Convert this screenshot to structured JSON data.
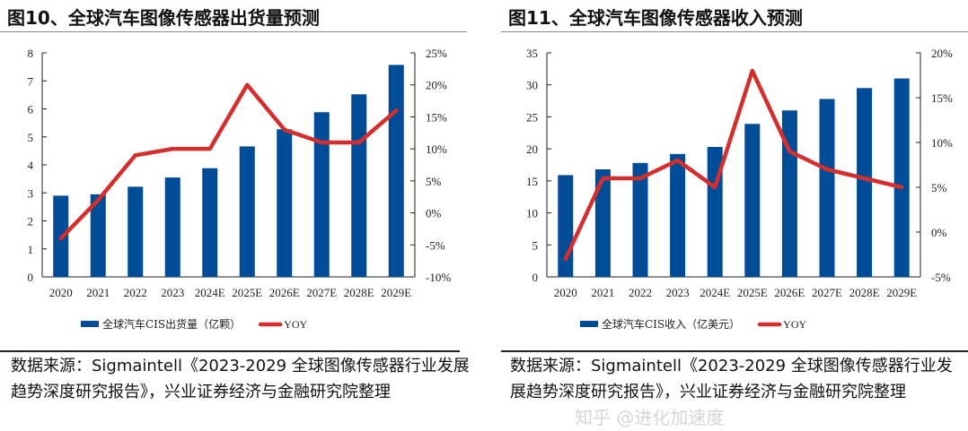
{
  "colors": {
    "bar": "#004C97",
    "line": "#D32F2F"
  },
  "watermark": "知乎 @进化加速度",
  "chart_data": [
    {
      "type": "bar+line",
      "title": "图10、全球汽车图像传感器出货量预测",
      "categories": [
        "2020",
        "2021",
        "2022",
        "2023",
        "2024E",
        "2025E",
        "2026E",
        "2027E",
        "2028E",
        "2029E"
      ],
      "series": [
        {
          "name": "全球汽车CIS出货量（亿颗）",
          "type": "bar",
          "axis": "left",
          "values": [
            2.9,
            2.95,
            3.22,
            3.55,
            3.88,
            4.66,
            5.27,
            5.88,
            6.52,
            7.57
          ]
        },
        {
          "name": "YOY",
          "type": "line",
          "axis": "right",
          "values": [
            -4,
            2,
            9,
            10,
            10,
            20,
            13,
            11,
            11,
            16
          ]
        }
      ],
      "ylim": [
        0,
        8
      ],
      "yticks": [
        "0",
        "1",
        "2",
        "3",
        "4",
        "5",
        "6",
        "7",
        "8"
      ],
      "y2lim": [
        -10,
        25
      ],
      "y2ticks": [
        "-10%",
        "-5%",
        "0%",
        "5%",
        "10%",
        "15%",
        "20%",
        "25%"
      ],
      "legend": "bottom",
      "grid": false,
      "source": "数据来源：Sigmaintell《2023-2029 全球图像传感器行业发展趋势深度研究报告》，兴业证券经济与金融研究院整理"
    },
    {
      "type": "bar+line",
      "title": "图11、全球汽车图像传感器收入预测",
      "categories": [
        "2020",
        "2021",
        "2022",
        "2023",
        "2024E",
        "2025E",
        "2026E",
        "2027E",
        "2028E",
        "2029E"
      ],
      "series": [
        {
          "name": "全球汽车CIS收入（亿美元）",
          "type": "bar",
          "axis": "left",
          "values": [
            15.9,
            16.8,
            17.8,
            19.2,
            20.3,
            23.9,
            26,
            27.8,
            29.5,
            31
          ]
        },
        {
          "name": "YOY",
          "type": "line",
          "axis": "right",
          "values": [
            -3,
            6,
            6,
            8,
            5,
            18,
            9,
            7,
            6,
            5
          ]
        }
      ],
      "ylim": [
        0,
        35
      ],
      "yticks": [
        "0",
        "5",
        "10",
        "15",
        "20",
        "25",
        "30",
        "35"
      ],
      "y2lim": [
        -5,
        20
      ],
      "y2ticks": [
        "-5%",
        "0%",
        "5%",
        "10%",
        "15%",
        "20%"
      ],
      "legend": "bottom",
      "grid": false,
      "source": "数据来源：Sigmaintell《2023-2029 全球图像传感器行业发展趋势深度研究报告》，兴业证券经济与金融研究院整理"
    }
  ]
}
